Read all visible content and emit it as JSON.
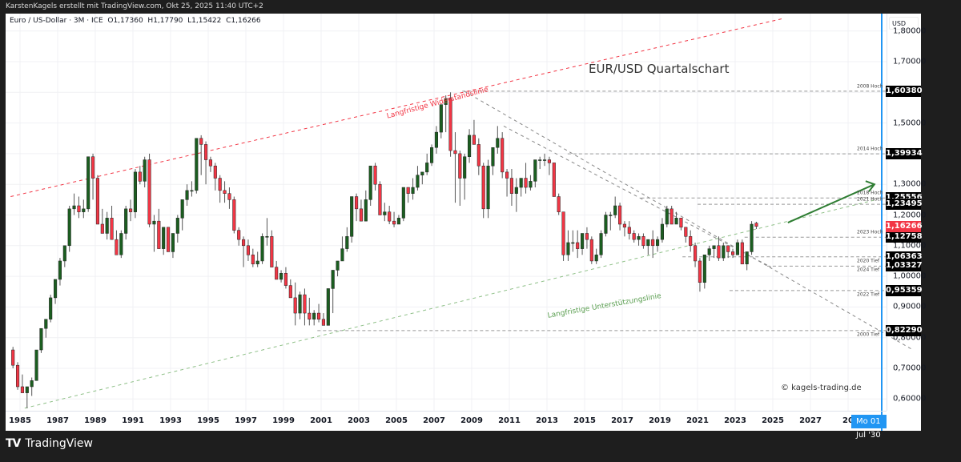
{
  "topbar": {
    "text": "KarstenKagels erstellt mit TradingView.com, Okt 25, 2025 11:40 UTC+2"
  },
  "legend": {
    "symbol": "Euro / US-Dollar · 3M · ICE",
    "open": "O1,17360",
    "high": "H1,17790",
    "low": "L1,15422",
    "close": "C1,16266"
  },
  "title": "EUR/USD Quartalschart",
  "copyright": "© kagels-trading.de",
  "footer": {
    "brand": "TradingView",
    "logo": "TV"
  },
  "price_axis": {
    "currency": "USD",
    "ticks": [
      "1,80000",
      "1,70000",
      "1,50000",
      "1,30000",
      "1,20000",
      "1,10000",
      "1,00000",
      "0,90000",
      "0,80000",
      "0,70000",
      "0,60000"
    ],
    "tick_values": [
      1.8,
      1.7,
      1.5,
      1.3,
      1.2,
      1.1,
      1.0,
      0.9,
      0.8,
      0.7,
      0.6
    ]
  },
  "price_labels": [
    {
      "value": 1.6038,
      "text": "1,60380",
      "note": "2008 Hoch"
    },
    {
      "value": 1.39934,
      "text": "1,39934",
      "note": "2014 Hoch"
    },
    {
      "value": 1.25556,
      "text": "1,25556",
      "note": "2018 Hoch"
    },
    {
      "value": 1.23495,
      "text": "1,23495",
      "note": "2021 Hoch"
    },
    {
      "value": 1.12758,
      "text": "1,12758",
      "note": "2023 Hoch"
    },
    {
      "value": 1.06363,
      "text": "1,06363",
      "note": "2020 Tief"
    },
    {
      "value": 1.03327,
      "text": "1,03327",
      "note": "2024 Tief"
    },
    {
      "value": 0.95359,
      "text": "0,95359",
      "note": "2022 Tief"
    },
    {
      "value": 0.8229,
      "text": "0,82290",
      "note": "2000 Tief"
    }
  ],
  "current_price": {
    "value": 1.16266,
    "text": "1,16266",
    "color": "#f23645"
  },
  "time_axis": {
    "years": [
      "1985",
      "1987",
      "1989",
      "1991",
      "1993",
      "1995",
      "1997",
      "1999",
      "2001",
      "2003",
      "2005",
      "2007",
      "2009",
      "2011",
      "2013",
      "2015",
      "2017",
      "2019",
      "2021",
      "2023",
      "2025",
      "2027",
      "20"
    ],
    "crosshair_label": "Mo 01 Jul '30"
  },
  "annotations": {
    "resistance_label": "Langfristige Widerstandslinie",
    "support_label": "Langfristige Unterstützungslinie",
    "resistance_color": "#f23645",
    "support_color": "#5a9e50",
    "arrow_color": "#2e7d32",
    "crosshair_color": "#2196f3"
  },
  "colors": {
    "up": "#1b5e20",
    "down": "#f23645",
    "background": "#ffffff",
    "frame": "#1e1e1e"
  },
  "chart_data": {
    "type": "candlestick",
    "title": "EUR/USD Quartalschart",
    "subtitle": "Euro / US-Dollar · 3M · ICE",
    "xlabel": "",
    "ylabel": "USD",
    "ylim": [
      0.55,
      1.82
    ],
    "xlim": [
      "1984-07",
      "2031-01"
    ],
    "grid": true,
    "last": {
      "open": 1.1736,
      "high": 1.1779,
      "low": 1.15422,
      "close": 1.16266
    },
    "horizontal_levels": [
      {
        "label": "2008 Hoch",
        "value": 1.6038
      },
      {
        "label": "2014 Hoch",
        "value": 1.39934
      },
      {
        "label": "2018 Hoch",
        "value": 1.25556
      },
      {
        "label": "2021 Hoch",
        "value": 1.23495
      },
      {
        "label": "2023 Hoch",
        "value": 1.12758
      },
      {
        "label": "2020 Tief",
        "value": 1.06363
      },
      {
        "label": "2024 Tief",
        "value": 1.03327
      },
      {
        "label": "2022 Tief",
        "value": 0.95359
      },
      {
        "label": "2000 Tief",
        "value": 0.8229
      }
    ],
    "trendlines": [
      {
        "name": "Langfristige Widerstandslinie",
        "from": [
          1984.5,
          1.26
        ],
        "to": [
          2025.5,
          1.84
        ]
      },
      {
        "name": "Langfristige Unterstützungslinie",
        "from": [
          1985.25,
          0.57
        ],
        "to": [
          2030.5,
          1.25
        ]
      }
    ],
    "candles_start": "1984-Q3",
    "candles": [
      [
        0.76,
        0.77,
        0.7,
        0.71
      ],
      [
        0.71,
        0.72,
        0.63,
        0.64
      ],
      [
        0.64,
        0.68,
        0.62,
        0.62
      ],
      [
        0.62,
        0.64,
        0.57,
        0.64
      ],
      [
        0.64,
        0.67,
        0.61,
        0.66
      ],
      [
        0.66,
        0.76,
        0.66,
        0.76
      ],
      [
        0.76,
        0.83,
        0.75,
        0.83
      ],
      [
        0.83,
        0.86,
        0.8,
        0.86
      ],
      [
        0.86,
        0.94,
        0.85,
        0.93
      ],
      [
        0.93,
        0.97,
        0.91,
        0.99
      ],
      [
        0.99,
        1.06,
        0.97,
        1.05
      ],
      [
        1.05,
        1.1,
        1.03,
        1.1
      ],
      [
        1.1,
        1.23,
        1.08,
        1.22
      ],
      [
        1.22,
        1.27,
        1.2,
        1.23
      ],
      [
        1.23,
        1.26,
        1.19,
        1.21
      ],
      [
        1.21,
        1.25,
        1.19,
        1.22
      ],
      [
        1.22,
        1.39,
        1.21,
        1.39
      ],
      [
        1.39,
        1.4,
        1.25,
        1.32
      ],
      [
        1.32,
        1.33,
        1.18,
        1.17
      ],
      [
        1.17,
        1.22,
        1.14,
        1.14
      ],
      [
        1.14,
        1.21,
        1.12,
        1.19
      ],
      [
        1.19,
        1.23,
        1.12,
        1.12
      ],
      [
        1.12,
        1.15,
        1.08,
        1.07
      ],
      [
        1.07,
        1.15,
        1.06,
        1.14
      ],
      [
        1.14,
        1.23,
        1.12,
        1.22
      ],
      [
        1.22,
        1.25,
        1.18,
        1.21
      ],
      [
        1.21,
        1.35,
        1.19,
        1.34
      ],
      [
        1.34,
        1.36,
        1.3,
        1.31
      ],
      [
        1.31,
        1.39,
        1.29,
        1.38
      ],
      [
        1.38,
        1.4,
        1.16,
        1.17
      ],
      [
        1.17,
        1.2,
        1.08,
        1.18
      ],
      [
        1.18,
        1.22,
        1.1,
        1.09
      ],
      [
        1.09,
        1.16,
        1.07,
        1.16
      ],
      [
        1.16,
        1.16,
        1.08,
        1.08
      ],
      [
        1.08,
        1.13,
        1.06,
        1.14
      ],
      [
        1.14,
        1.2,
        1.11,
        1.19
      ],
      [
        1.19,
        1.22,
        1.15,
        1.25
      ],
      [
        1.25,
        1.3,
        1.23,
        1.28
      ],
      [
        1.28,
        1.31,
        1.26,
        1.28
      ],
      [
        1.28,
        1.4,
        1.27,
        1.45
      ],
      [
        1.45,
        1.46,
        1.33,
        1.43
      ],
      [
        1.43,
        1.44,
        1.3,
        1.38
      ],
      [
        1.38,
        1.39,
        1.34,
        1.36
      ],
      [
        1.36,
        1.37,
        1.28,
        1.32
      ],
      [
        1.32,
        1.33,
        1.24,
        1.28
      ],
      [
        1.28,
        1.31,
        1.24,
        1.27
      ],
      [
        1.27,
        1.29,
        1.22,
        1.25
      ],
      [
        1.25,
        1.26,
        1.14,
        1.15
      ],
      [
        1.15,
        1.16,
        1.1,
        1.12
      ],
      [
        1.12,
        1.13,
        1.03,
        1.1
      ],
      [
        1.1,
        1.12,
        1.05,
        1.07
      ],
      [
        1.07,
        1.09,
        1.03,
        1.04
      ],
      [
        1.04,
        1.08,
        1.03,
        1.05
      ],
      [
        1.05,
        1.14,
        1.04,
        1.13
      ],
      [
        1.13,
        1.19,
        1.1,
        1.13
      ],
      [
        1.13,
        1.15,
        1.06,
        1.03
      ],
      [
        1.03,
        1.05,
        1.01,
        0.99
      ],
      [
        0.99,
        1.02,
        0.98,
        1.01
      ],
      [
        1.01,
        1.03,
        0.96,
        0.97
      ],
      [
        0.97,
        0.99,
        0.93,
        0.93
      ],
      [
        0.93,
        0.98,
        0.84,
        0.88
      ],
      [
        0.88,
        0.95,
        0.86,
        0.94
      ],
      [
        0.94,
        0.96,
        0.84,
        0.88
      ],
      [
        0.88,
        0.93,
        0.84,
        0.86
      ],
      [
        0.86,
        0.89,
        0.84,
        0.88
      ],
      [
        0.88,
        0.91,
        0.85,
        0.86
      ],
      [
        0.86,
        0.88,
        0.84,
        0.84
      ],
      [
        0.84,
        0.91,
        0.84,
        0.96
      ],
      [
        0.96,
        0.97,
        0.88,
        1.02
      ],
      [
        1.02,
        1.04,
        1.0,
        1.05
      ],
      [
        1.05,
        1.13,
        1.05,
        1.09
      ],
      [
        1.09,
        1.16,
        1.08,
        1.13
      ],
      [
        1.13,
        1.26,
        1.11,
        1.26
      ],
      [
        1.26,
        1.27,
        1.18,
        1.22
      ],
      [
        1.22,
        1.25,
        1.18,
        1.18
      ],
      [
        1.18,
        1.28,
        1.18,
        1.25
      ],
      [
        1.25,
        1.36,
        1.23,
        1.36
      ],
      [
        1.36,
        1.37,
        1.28,
        1.3
      ],
      [
        1.3,
        1.31,
        1.21,
        1.2
      ],
      [
        1.2,
        1.24,
        1.18,
        1.21
      ],
      [
        1.21,
        1.23,
        1.17,
        1.18
      ],
      [
        1.18,
        1.21,
        1.16,
        1.17
      ],
      [
        1.17,
        1.2,
        1.17,
        1.19
      ],
      [
        1.19,
        1.28,
        1.18,
        1.29
      ],
      [
        1.29,
        1.29,
        1.24,
        1.27
      ],
      [
        1.27,
        1.32,
        1.25,
        1.29
      ],
      [
        1.29,
        1.36,
        1.28,
        1.33
      ],
      [
        1.33,
        1.34,
        1.3,
        1.34
      ],
      [
        1.34,
        1.4,
        1.33,
        1.37
      ],
      [
        1.37,
        1.43,
        1.36,
        1.42
      ],
      [
        1.42,
        1.49,
        1.4,
        1.47
      ],
      [
        1.47,
        1.55,
        1.45,
        1.56
      ],
      [
        1.56,
        1.59,
        1.47,
        1.58
      ],
      [
        1.58,
        1.6,
        1.39,
        1.41
      ],
      [
        1.41,
        1.47,
        1.24,
        1.4
      ],
      [
        1.4,
        1.41,
        1.23,
        1.32
      ],
      [
        1.32,
        1.4,
        1.25,
        1.39
      ],
      [
        1.39,
        1.48,
        1.37,
        1.46
      ],
      [
        1.46,
        1.51,
        1.43,
        1.43
      ],
      [
        1.43,
        1.45,
        1.33,
        1.36
      ],
      [
        1.36,
        1.37,
        1.19,
        1.22
      ],
      [
        1.22,
        1.38,
        1.19,
        1.36
      ],
      [
        1.36,
        1.42,
        1.33,
        1.42
      ],
      [
        1.42,
        1.49,
        1.4,
        1.45
      ],
      [
        1.45,
        1.47,
        1.32,
        1.34
      ],
      [
        1.34,
        1.35,
        1.26,
        1.32
      ],
      [
        1.32,
        1.35,
        1.23,
        1.27
      ],
      [
        1.27,
        1.32,
        1.21,
        1.29
      ],
      [
        1.29,
        1.32,
        1.26,
        1.32
      ],
      [
        1.32,
        1.37,
        1.27,
        1.29
      ],
      [
        1.29,
        1.33,
        1.28,
        1.31
      ],
      [
        1.31,
        1.35,
        1.29,
        1.38
      ],
      [
        1.38,
        1.39,
        1.35,
        1.38
      ],
      [
        1.38,
        1.4,
        1.36,
        1.38
      ],
      [
        1.38,
        1.39,
        1.33,
        1.37
      ],
      [
        1.37,
        1.37,
        1.26,
        1.26
      ],
      [
        1.26,
        1.27,
        1.2,
        1.21
      ],
      [
        1.21,
        1.21,
        1.05,
        1.07
      ],
      [
        1.07,
        1.15,
        1.05,
        1.11
      ],
      [
        1.11,
        1.15,
        1.08,
        1.11
      ],
      [
        1.11,
        1.15,
        1.06,
        1.09
      ],
      [
        1.09,
        1.14,
        1.07,
        1.14
      ],
      [
        1.14,
        1.16,
        1.09,
        1.12
      ],
      [
        1.12,
        1.13,
        1.04,
        1.05
      ],
      [
        1.05,
        1.09,
        1.04,
        1.07
      ],
      [
        1.07,
        1.15,
        1.06,
        1.14
      ],
      [
        1.14,
        1.21,
        1.13,
        1.2
      ],
      [
        1.2,
        1.21,
        1.15,
        1.2
      ],
      [
        1.2,
        1.26,
        1.19,
        1.23
      ],
      [
        1.23,
        1.24,
        1.15,
        1.17
      ],
      [
        1.17,
        1.18,
        1.13,
        1.16
      ],
      [
        1.16,
        1.18,
        1.12,
        1.14
      ],
      [
        1.14,
        1.15,
        1.11,
        1.12
      ],
      [
        1.12,
        1.14,
        1.1,
        1.13
      ],
      [
        1.13,
        1.14,
        1.09,
        1.1
      ],
      [
        1.1,
        1.12,
        1.07,
        1.12
      ],
      [
        1.12,
        1.15,
        1.06,
        1.1
      ],
      [
        1.1,
        1.13,
        1.08,
        1.12
      ],
      [
        1.12,
        1.19,
        1.11,
        1.17
      ],
      [
        1.17,
        1.23,
        1.16,
        1.22
      ],
      [
        1.22,
        1.23,
        1.17,
        1.17
      ],
      [
        1.17,
        1.21,
        1.17,
        1.19
      ],
      [
        1.19,
        1.19,
        1.15,
        1.16
      ],
      [
        1.16,
        1.16,
        1.11,
        1.13
      ],
      [
        1.13,
        1.15,
        1.08,
        1.1
      ],
      [
        1.1,
        1.11,
        1.03,
        1.05
      ],
      [
        1.05,
        1.06,
        0.95,
        0.98
      ],
      [
        0.98,
        1.07,
        0.96,
        1.07
      ],
      [
        1.07,
        1.1,
        1.05,
        1.09
      ],
      [
        1.09,
        1.1,
        1.06,
        1.1
      ],
      [
        1.1,
        1.13,
        1.05,
        1.06
      ],
      [
        1.06,
        1.11,
        1.05,
        1.1
      ],
      [
        1.1,
        1.1,
        1.06,
        1.08
      ],
      [
        1.08,
        1.09,
        1.06,
        1.07
      ],
      [
        1.07,
        1.12,
        1.07,
        1.11
      ],
      [
        1.11,
        1.12,
        1.04,
        1.04
      ],
      [
        1.04,
        1.08,
        1.02,
        1.08
      ],
      [
        1.08,
        1.18,
        1.07,
        1.17
      ],
      [
        1.1736,
        1.1779,
        1.15422,
        1.16266
      ]
    ]
  }
}
